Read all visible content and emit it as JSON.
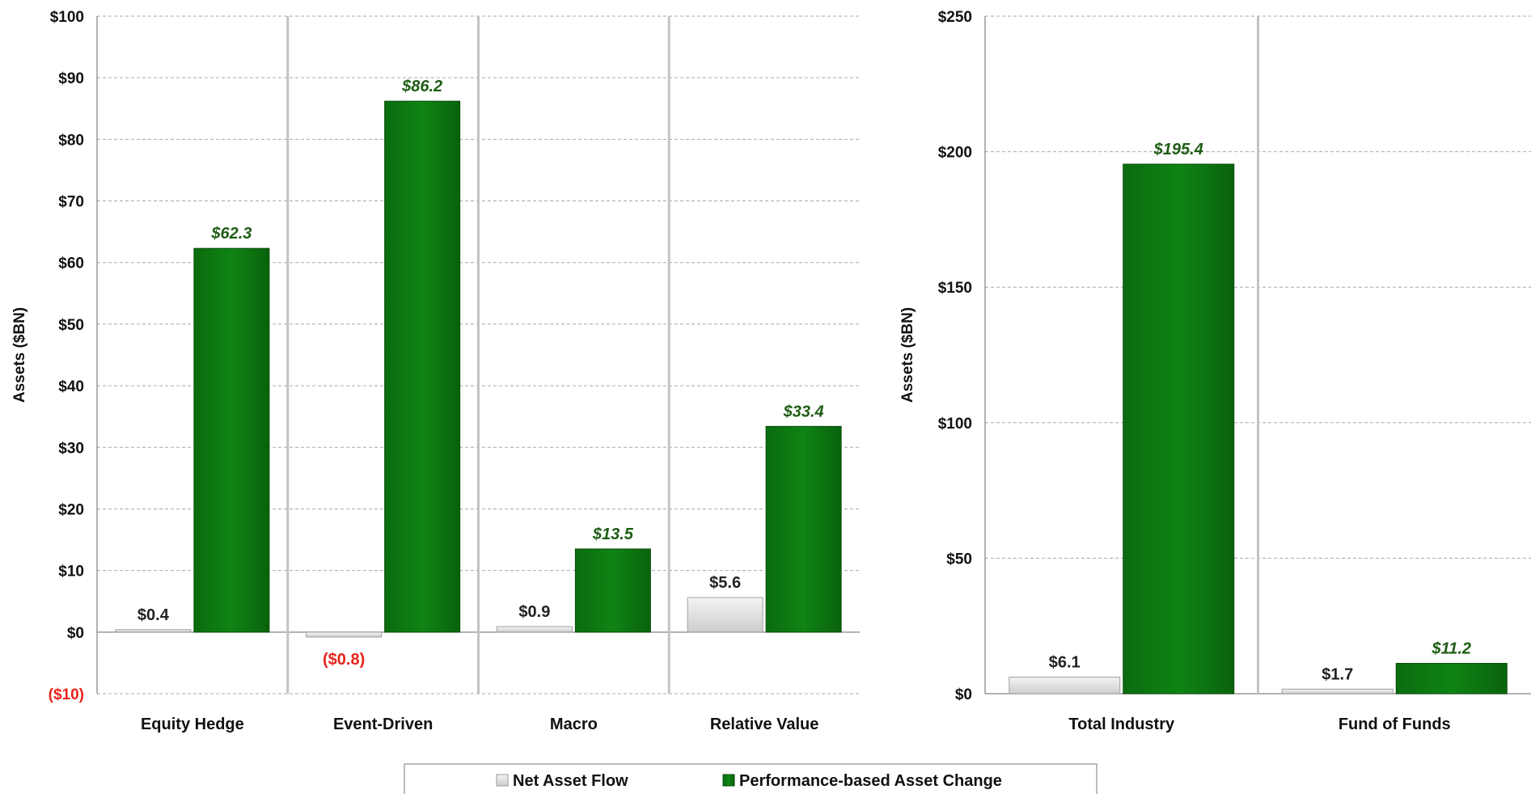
{
  "legend": {
    "net_asset_flow": "Net Asset Flow",
    "performance": "Performance-based Asset Change"
  },
  "colors": {
    "net_asset_flow": "#d9d9d9",
    "performance": "#0d7a12",
    "performance_label": "#1e5d14",
    "negative": "#e8231b",
    "grid": "#a9a9a9"
  },
  "chart_data": [
    {
      "type": "bar",
      "ylabel": "Assets ($BN)",
      "ylim": [
        -10,
        100
      ],
      "yticks": [
        -10,
        0,
        10,
        20,
        30,
        40,
        50,
        60,
        70,
        80,
        90,
        100
      ],
      "ytick_labels": [
        "($10)",
        "$0",
        "$10",
        "$20",
        "$30",
        "$40",
        "$50",
        "$60",
        "$70",
        "$80",
        "$90",
        "$100"
      ],
      "categories": [
        "Equity Hedge",
        "Event-Driven",
        "Macro",
        "Relative Value"
      ],
      "grid": true,
      "series": [
        {
          "name": "Net Asset Flow",
          "values": [
            0.4,
            -0.8,
            0.9,
            5.6
          ],
          "labels": [
            "$0.4",
            "($0.8)",
            "$0.9",
            "$5.6"
          ]
        },
        {
          "name": "Performance-based Asset Change",
          "values": [
            62.3,
            86.2,
            13.5,
            33.4
          ],
          "labels": [
            "$62.3",
            "$86.2",
            "$13.5",
            "$33.4"
          ]
        }
      ]
    },
    {
      "type": "bar",
      "ylabel": "Assets ($BN)",
      "ylim": [
        0,
        250
      ],
      "yticks": [
        0,
        50,
        100,
        150,
        200,
        250
      ],
      "ytick_labels": [
        "$0",
        "$50",
        "$100",
        "$150",
        "$200",
        "$250"
      ],
      "categories": [
        "Total Industry",
        "Fund of Funds"
      ],
      "grid": true,
      "series": [
        {
          "name": "Net Asset Flow",
          "values": [
            6.1,
            1.7
          ],
          "labels": [
            "$6.1",
            "$1.7"
          ]
        },
        {
          "name": "Performance-based Asset Change",
          "values": [
            195.4,
            11.2
          ],
          "labels": [
            "$195.4",
            "$11.2"
          ]
        }
      ]
    }
  ]
}
